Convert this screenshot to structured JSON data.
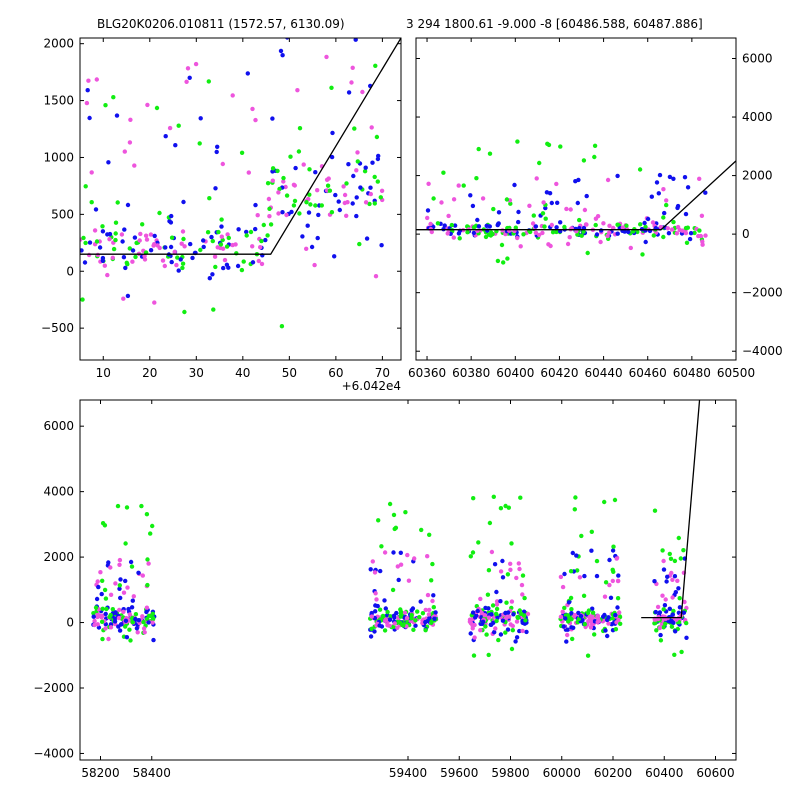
{
  "figure": {
    "title_left": "BLG20K0206.010811 (1572.57, 6130.09)",
    "title_right": "3 294 1800.61 -9.000 -8 [60486.588, 60487.886]"
  },
  "colors": {
    "blue": "#1010ee",
    "green": "#11ee11",
    "pink": "#ee55dd",
    "axis": "#000000"
  },
  "chart_data": [
    {
      "id": "zoom",
      "type": "scatter",
      "xlim": [
        5,
        74
      ],
      "ylim": [
        -780,
        2050
      ],
      "x_offset_label": "+6.042e4",
      "xticks": [
        10,
        20,
        30,
        40,
        50,
        60,
        70
      ],
      "yticks": [
        -500,
        0,
        500,
        1000,
        1500,
        2000
      ],
      "model": {
        "x": [
          5,
          46,
          74
        ],
        "y": [
          150,
          150,
          2050
        ]
      },
      "clusters": [
        {
          "x_from": 5,
          "x_to": 45,
          "y_center": 220,
          "y_spread": 430,
          "seed": 11
        },
        {
          "x_from": 45,
          "x_to": 70,
          "y_center": 700,
          "y_spread": 620,
          "seed": 12
        }
      ]
    },
    {
      "id": "season",
      "type": "scatter",
      "xlim": [
        60355,
        60500
      ],
      "ylim": [
        -4300,
        6700
      ],
      "xticks": [
        60360,
        60380,
        60400,
        60420,
        60440,
        60460,
        60480,
        60500
      ],
      "yticks": [
        -4000,
        -2000,
        0,
        2000,
        4000,
        6000
      ],
      "y_axis_side": "right",
      "model": {
        "x": [
          60355,
          60466,
          60500
        ],
        "y": [
          150,
          150,
          2500
        ]
      },
      "clusters": [
        {
          "x_from": 60360,
          "x_to": 60487,
          "y_center": 150,
          "y_spread": 500,
          "seed": 21
        }
      ]
    },
    {
      "id": "full",
      "type": "scatter",
      "xlim": [
        58120,
        60680
      ],
      "ylim": [
        -4200,
        6800
      ],
      "xticks": [
        58200,
        58400,
        59400,
        59600,
        59800,
        60000,
        60200,
        60400,
        60600
      ],
      "yticks": [
        -4000,
        -2000,
        0,
        2000,
        4000,
        6000
      ],
      "model": {
        "x": [
          60310,
          60466,
          60540
        ],
        "y": [
          150,
          150,
          7000
        ]
      },
      "clusters": [
        {
          "x_from": 58170,
          "x_to": 58410,
          "y_center": 100,
          "y_spread": 520,
          "seed": 31
        },
        {
          "x_from": 59250,
          "x_to": 59510,
          "y_center": 100,
          "y_spread": 560,
          "seed": 32
        },
        {
          "x_from": 59640,
          "x_to": 59870,
          "y_center": 100,
          "y_spread": 560,
          "seed": 33
        },
        {
          "x_from": 59995,
          "x_to": 60230,
          "y_center": 100,
          "y_spread": 560,
          "seed": 34
        },
        {
          "x_from": 60360,
          "x_to": 60487,
          "y_center": 120,
          "y_spread": 500,
          "seed": 35
        }
      ]
    }
  ]
}
